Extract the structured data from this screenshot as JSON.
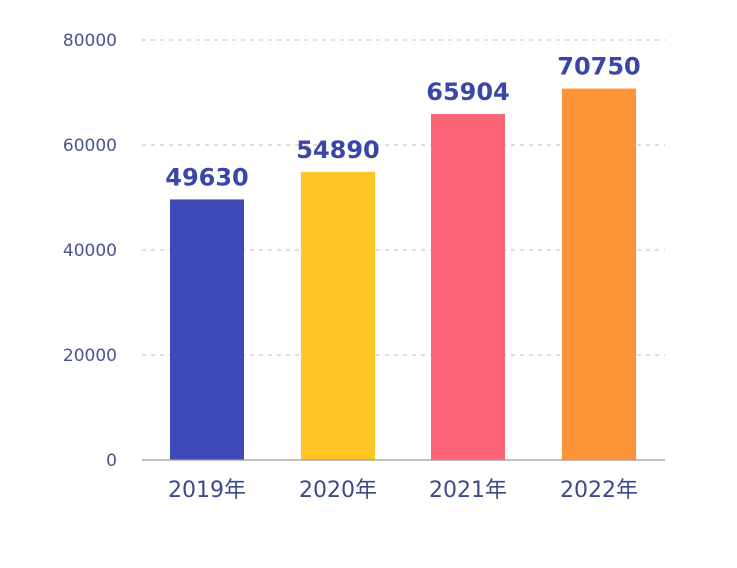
{
  "chart_data": {
    "type": "bar",
    "categories": [
      "2019年",
      "2020年",
      "2021年",
      "2022年"
    ],
    "values": [
      49630,
      54890,
      65904,
      70750
    ],
    "data_labels": [
      "49630",
      "54890",
      "65904",
      "70750"
    ],
    "colors": [
      "#3f4ab8",
      "#ffc524",
      "#fe6477",
      "#fe9438"
    ],
    "yticks": [
      0,
      20000,
      40000,
      60000,
      80000
    ],
    "ytick_labels": [
      "0",
      "20000",
      "40000",
      "60000",
      "80000"
    ],
    "ylim": [
      0,
      80000
    ],
    "grid": true,
    "grid_style": "dashed",
    "title": "",
    "xlabel": "",
    "ylabel": ""
  }
}
